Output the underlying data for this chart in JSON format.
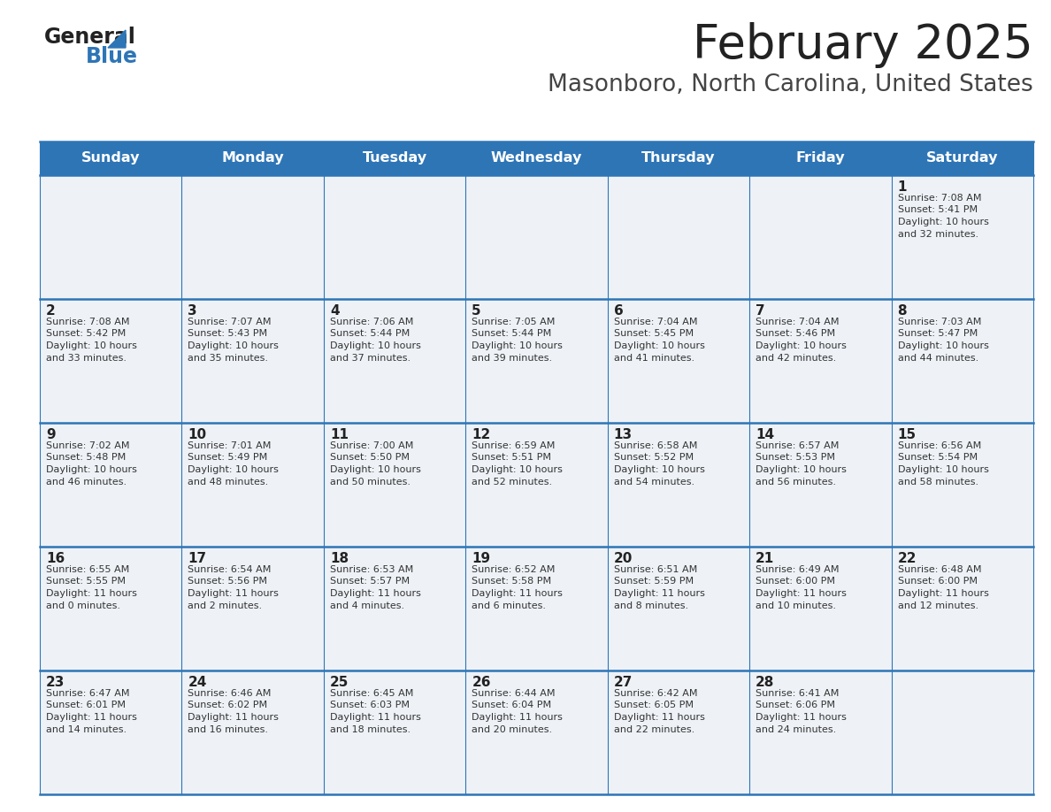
{
  "title": "February 2025",
  "subtitle": "Masonboro, North Carolina, United States",
  "header_color": "#2E75B6",
  "header_text_color": "#FFFFFF",
  "cell_bg_color": "#EEF2F7",
  "border_color": "#2E75B6",
  "day_number_color": "#222222",
  "text_color": "#333333",
  "title_color": "#222222",
  "subtitle_color": "#444444",
  "logo_general_color": "#222222",
  "logo_blue_color": "#2E75B6",
  "weekdays": [
    "Sunday",
    "Monday",
    "Tuesday",
    "Wednesday",
    "Thursday",
    "Friday",
    "Saturday"
  ],
  "weeks": [
    [
      {
        "day": null,
        "sunrise": null,
        "sunset": null,
        "daylight": null
      },
      {
        "day": null,
        "sunrise": null,
        "sunset": null,
        "daylight": null
      },
      {
        "day": null,
        "sunrise": null,
        "sunset": null,
        "daylight": null
      },
      {
        "day": null,
        "sunrise": null,
        "sunset": null,
        "daylight": null
      },
      {
        "day": null,
        "sunrise": null,
        "sunset": null,
        "daylight": null
      },
      {
        "day": null,
        "sunrise": null,
        "sunset": null,
        "daylight": null
      },
      {
        "day": 1,
        "sunrise": "7:08 AM",
        "sunset": "5:41 PM",
        "daylight": "10 hours and 32 minutes."
      }
    ],
    [
      {
        "day": 2,
        "sunrise": "7:08 AM",
        "sunset": "5:42 PM",
        "daylight": "10 hours and 33 minutes."
      },
      {
        "day": 3,
        "sunrise": "7:07 AM",
        "sunset": "5:43 PM",
        "daylight": "10 hours and 35 minutes."
      },
      {
        "day": 4,
        "sunrise": "7:06 AM",
        "sunset": "5:44 PM",
        "daylight": "10 hours and 37 minutes."
      },
      {
        "day": 5,
        "sunrise": "7:05 AM",
        "sunset": "5:44 PM",
        "daylight": "10 hours and 39 minutes."
      },
      {
        "day": 6,
        "sunrise": "7:04 AM",
        "sunset": "5:45 PM",
        "daylight": "10 hours and 41 minutes."
      },
      {
        "day": 7,
        "sunrise": "7:04 AM",
        "sunset": "5:46 PM",
        "daylight": "10 hours and 42 minutes."
      },
      {
        "day": 8,
        "sunrise": "7:03 AM",
        "sunset": "5:47 PM",
        "daylight": "10 hours and 44 minutes."
      }
    ],
    [
      {
        "day": 9,
        "sunrise": "7:02 AM",
        "sunset": "5:48 PM",
        "daylight": "10 hours and 46 minutes."
      },
      {
        "day": 10,
        "sunrise": "7:01 AM",
        "sunset": "5:49 PM",
        "daylight": "10 hours and 48 minutes."
      },
      {
        "day": 11,
        "sunrise": "7:00 AM",
        "sunset": "5:50 PM",
        "daylight": "10 hours and 50 minutes."
      },
      {
        "day": 12,
        "sunrise": "6:59 AM",
        "sunset": "5:51 PM",
        "daylight": "10 hours and 52 minutes."
      },
      {
        "day": 13,
        "sunrise": "6:58 AM",
        "sunset": "5:52 PM",
        "daylight": "10 hours and 54 minutes."
      },
      {
        "day": 14,
        "sunrise": "6:57 AM",
        "sunset": "5:53 PM",
        "daylight": "10 hours and 56 minutes."
      },
      {
        "day": 15,
        "sunrise": "6:56 AM",
        "sunset": "5:54 PM",
        "daylight": "10 hours and 58 minutes."
      }
    ],
    [
      {
        "day": 16,
        "sunrise": "6:55 AM",
        "sunset": "5:55 PM",
        "daylight": "11 hours and 0 minutes."
      },
      {
        "day": 17,
        "sunrise": "6:54 AM",
        "sunset": "5:56 PM",
        "daylight": "11 hours and 2 minutes."
      },
      {
        "day": 18,
        "sunrise": "6:53 AM",
        "sunset": "5:57 PM",
        "daylight": "11 hours and 4 minutes."
      },
      {
        "day": 19,
        "sunrise": "6:52 AM",
        "sunset": "5:58 PM",
        "daylight": "11 hours and 6 minutes."
      },
      {
        "day": 20,
        "sunrise": "6:51 AM",
        "sunset": "5:59 PM",
        "daylight": "11 hours and 8 minutes."
      },
      {
        "day": 21,
        "sunrise": "6:49 AM",
        "sunset": "6:00 PM",
        "daylight": "11 hours and 10 minutes."
      },
      {
        "day": 22,
        "sunrise": "6:48 AM",
        "sunset": "6:00 PM",
        "daylight": "11 hours and 12 minutes."
      }
    ],
    [
      {
        "day": 23,
        "sunrise": "6:47 AM",
        "sunset": "6:01 PM",
        "daylight": "11 hours and 14 minutes."
      },
      {
        "day": 24,
        "sunrise": "6:46 AM",
        "sunset": "6:02 PM",
        "daylight": "11 hours and 16 minutes."
      },
      {
        "day": 25,
        "sunrise": "6:45 AM",
        "sunset": "6:03 PM",
        "daylight": "11 hours and 18 minutes."
      },
      {
        "day": 26,
        "sunrise": "6:44 AM",
        "sunset": "6:04 PM",
        "daylight": "11 hours and 20 minutes."
      },
      {
        "day": 27,
        "sunrise": "6:42 AM",
        "sunset": "6:05 PM",
        "daylight": "11 hours and 22 minutes."
      },
      {
        "day": 28,
        "sunrise": "6:41 AM",
        "sunset": "6:06 PM",
        "daylight": "11 hours and 24 minutes."
      },
      {
        "day": null,
        "sunrise": null,
        "sunset": null,
        "daylight": null
      }
    ]
  ]
}
